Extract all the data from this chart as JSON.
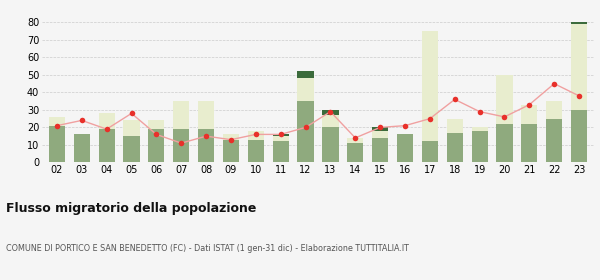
{
  "years": [
    "02",
    "03",
    "04",
    "05",
    "06",
    "07",
    "08",
    "09",
    "10",
    "11",
    "12",
    "13",
    "14",
    "15",
    "16",
    "17",
    "18",
    "19",
    "20",
    "21",
    "22",
    "23"
  ],
  "iscritti_altri_comuni": [
    21,
    16,
    19,
    15,
    19,
    19,
    19,
    13,
    13,
    12,
    35,
    20,
    11,
    14,
    16,
    12,
    17,
    18,
    22,
    22,
    25,
    30
  ],
  "iscritti_estero": [
    5,
    0,
    9,
    9,
    5,
    16,
    16,
    3,
    5,
    3,
    13,
    7,
    3,
    4,
    0,
    63,
    8,
    2,
    28,
    11,
    10,
    49
  ],
  "iscritti_altri": [
    0,
    0,
    0,
    0,
    0,
    0,
    0,
    0,
    0,
    1,
    4,
    3,
    0,
    2,
    0,
    0,
    0,
    0,
    0,
    0,
    0,
    1
  ],
  "cancellati": [
    21,
    24,
    19,
    28,
    16,
    11,
    15,
    13,
    16,
    16,
    20,
    29,
    14,
    20,
    21,
    25,
    36,
    29,
    26,
    33,
    45,
    38
  ],
  "color_altri_comuni": "#8faa7e",
  "color_estero": "#e8edce",
  "color_altri": "#3b6b3b",
  "color_cancellati": "#e8302a",
  "color_line": "#f0a0a0",
  "title": "Flusso migratorio della popolazione",
  "subtitle": "COMUNE DI PORTICO E SAN BENEDETTO (FC) - Dati ISTAT (1 gen-31 dic) - Elaborazione TUTTITALIA.IT",
  "ylim": [
    0,
    80
  ],
  "yticks": [
    0,
    10,
    20,
    30,
    40,
    50,
    60,
    70,
    80
  ],
  "background_color": "#f5f5f5"
}
